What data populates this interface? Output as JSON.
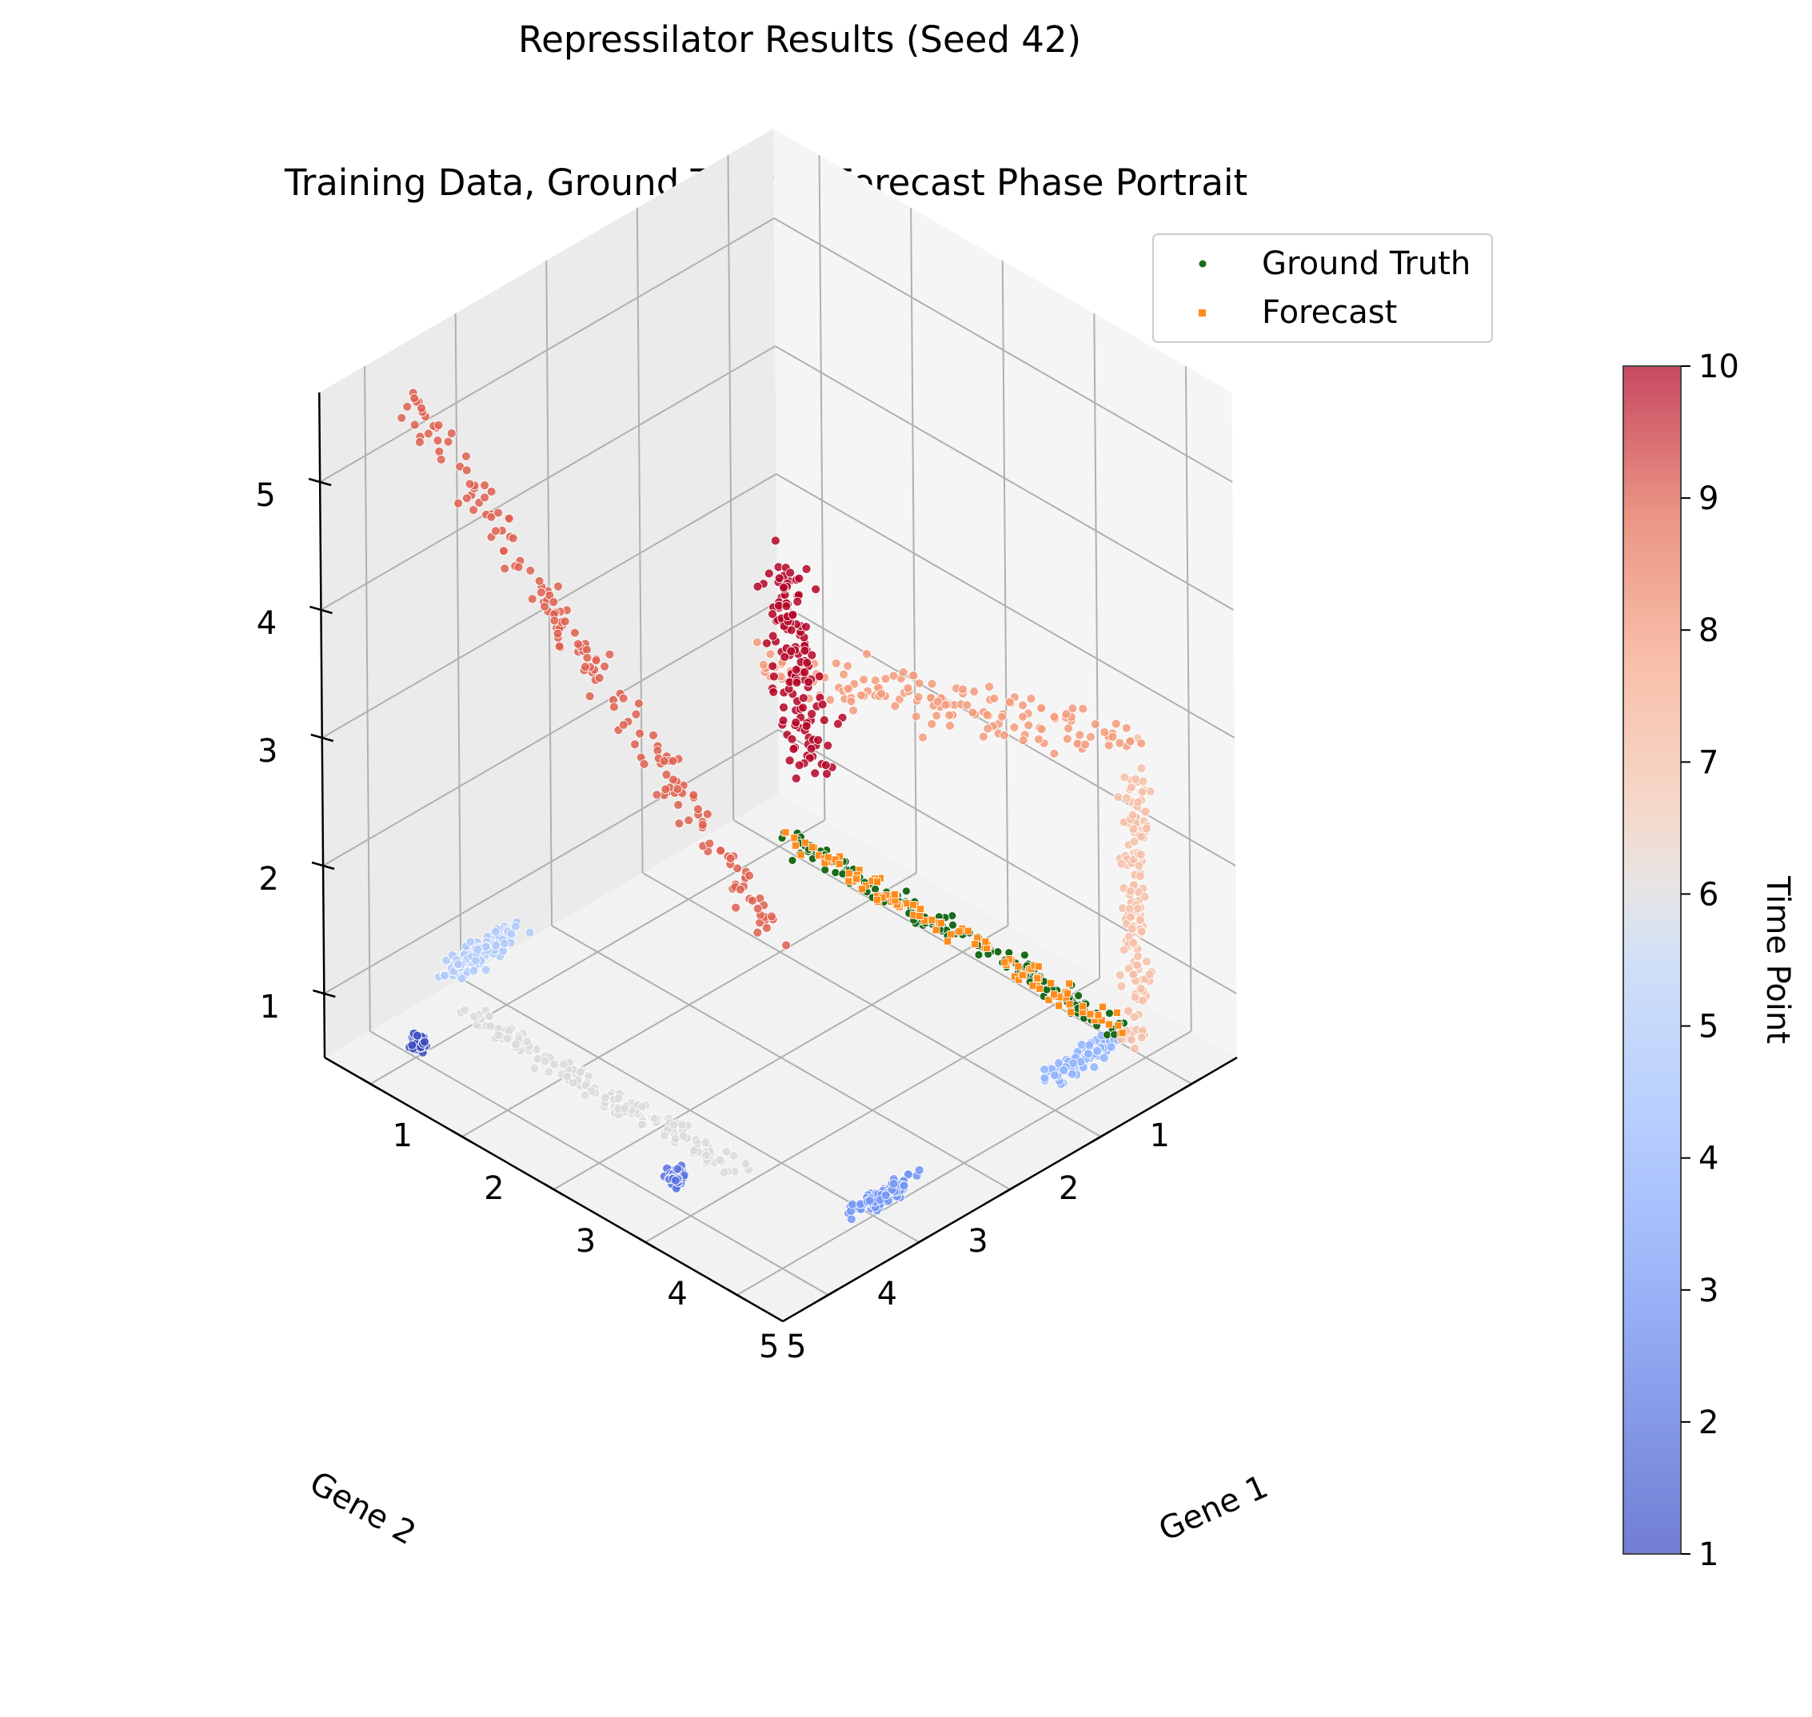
{
  "figure": {
    "suptitle": "Repressilator Results (Seed 42)",
    "title": "Training Data, Ground Truth & Forecast Phase Portrait"
  },
  "chart_data": {
    "type": "scatter",
    "projection": "3d",
    "xlabel": "Gene 1",
    "ylabel": "Gene 2",
    "zlabel": "",
    "xlim": [
      0.5,
      5.5
    ],
    "ylim": [
      0.5,
      5.5
    ],
    "zlim": [
      0.5,
      5.7
    ],
    "xticks": [
      "1",
      "2",
      "3",
      "4",
      "5"
    ],
    "yticks": [
      "1",
      "2",
      "3",
      "4",
      "5"
    ],
    "zticks": [
      "1",
      "2",
      "3",
      "4",
      "5"
    ],
    "grid": true,
    "legend": {
      "placement": "top-right",
      "entries": [
        {
          "label": "Ground Truth",
          "color": "#1b6b1b",
          "marker": "circle"
        },
        {
          "label": "Forecast",
          "color": "#ff8c1a",
          "marker": "square"
        }
      ]
    },
    "colorbar": {
      "label": "Time Point",
      "cmap": "coolwarm",
      "range": [
        1,
        10
      ],
      "ticks": [
        "1",
        "2",
        "3",
        "4",
        "5",
        "6",
        "7",
        "8",
        "9",
        "10"
      ]
    },
    "series": [
      {
        "name": "Ground Truth",
        "color": "#1b6b1b",
        "marker": "circle",
        "count": 160,
        "start": [
          1.05,
          1.0,
          0.62
        ],
        "end": [
          4.7,
          1.0,
          0.62
        ],
        "spread": [
          0.06,
          0.04,
          0.04
        ]
      },
      {
        "name": "Forecast",
        "color": "#ff8c1a",
        "marker": "square",
        "count": 110,
        "start": [
          1.05,
          1.0,
          0.62
        ],
        "end": [
          4.7,
          1.0,
          0.62
        ],
        "spread": [
          0.06,
          0.04,
          0.04
        ]
      }
    ],
    "training_clusters": [
      {
        "time_point": 1,
        "count": 60,
        "center": [
          1.05,
          5.02,
          0.63
        ],
        "spread": [
          0.03,
          0.03,
          0.03
        ]
      },
      {
        "time_point": 2,
        "count": 80,
        "center": [
          3.7,
          4.85,
          0.62
        ],
        "spread": [
          0.03,
          0.03,
          0.03
        ]
      },
      {
        "time_point": 3,
        "count": 110,
        "start": [
          5.0,
          3.65,
          0.62
        ],
        "end": [
          5.0,
          4.05,
          0.62
        ],
        "spread": [
          0.03,
          0.1,
          0.03
        ]
      },
      {
        "time_point": 4,
        "count": 120,
        "start": [
          4.85,
          1.25,
          0.65
        ],
        "end": [
          4.85,
          1.75,
          0.65
        ],
        "spread": [
          0.03,
          0.12,
          0.04
        ]
      },
      {
        "time_point": 5,
        "count": 120,
        "start": [
          0.72,
          4.3,
          0.8
        ],
        "end": [
          0.72,
          3.7,
          0.8
        ],
        "spread": [
          0.02,
          0.12,
          0.05
        ]
      },
      {
        "time_point": 6,
        "count": 170,
        "start": [
          1.2,
          4.6,
          0.75
        ],
        "end": [
          4.0,
          4.6,
          0.75
        ],
        "spread": [
          0.1,
          0.05,
          0.03
        ]
      },
      {
        "time_point": 7,
        "count": 160,
        "start": [
          4.9,
          1.0,
          0.8
        ],
        "end": [
          4.9,
          1.0,
          2.6
        ],
        "spread": [
          0.06,
          0.04,
          0.18
        ]
      },
      {
        "time_point": 8,
        "count": 150,
        "start": [
          4.9,
          1.0,
          2.9
        ],
        "end": [
          4.9,
          5.1,
          5.2
        ],
        "spread": [
          0.05,
          0.1,
          0.08
        ]
      },
      {
        "time_point": 9,
        "count": 180,
        "start": [
          1.0,
          5.0,
          5.6
        ],
        "end": [
          5.0,
          5.0,
          3.1
        ],
        "spread": [
          0.06,
          0.05,
          0.08
        ]
      },
      {
        "time_point": 10,
        "count": 150,
        "start": [
          1.0,
          0.6,
          1.0
        ],
        "end": [
          1.0,
          1.0,
          2.6
        ],
        "spread": [
          0.05,
          0.1,
          0.2
        ]
      }
    ]
  }
}
